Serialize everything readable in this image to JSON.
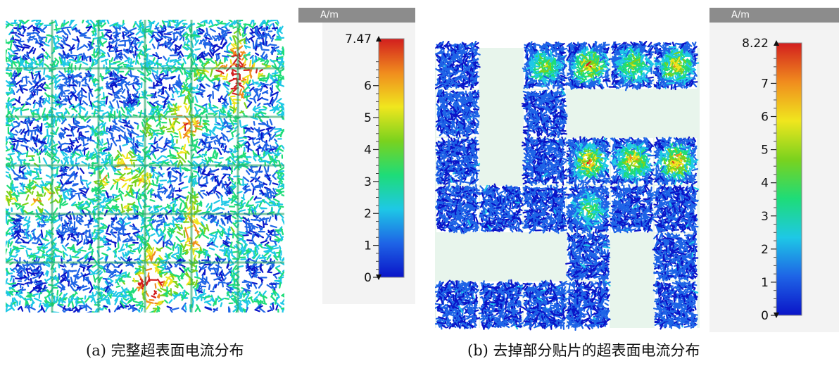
{
  "panels": [
    {
      "id": "a",
      "legend": {
        "unit": "A/m",
        "max_label": "7.47",
        "tick_labels": [
          "6",
          "5",
          "4",
          "3",
          "2",
          "1",
          "0"
        ],
        "max_value": 7.47
      },
      "caption": "(a)  完整超表面电流分布"
    },
    {
      "id": "b",
      "legend": {
        "unit": "A/m",
        "max_label": "8.22",
        "tick_labels": [
          "7",
          "6",
          "5",
          "4",
          "3",
          "2",
          "1",
          "0"
        ],
        "max_value": 8.22
      },
      "caption": "(b)  去掉部分贴片的超表面电流分布"
    }
  ],
  "colors": {
    "colormap": [
      "#0a14c8",
      "#1e64e6",
      "#1ec8e6",
      "#1edc78",
      "#7ad21e",
      "#f0e61e",
      "#f08c1e",
      "#d21e1e"
    ],
    "removed_region": "#e8f5ec",
    "legend_header": "#8c8c8c"
  }
}
